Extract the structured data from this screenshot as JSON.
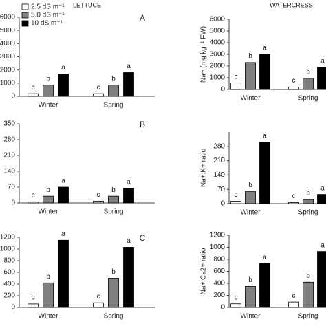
{
  "chart_data": [
    {
      "type": "bar",
      "title": "LETTUCE",
      "panel": "A",
      "categories": [
        "Winter",
        "Spring"
      ],
      "series": [
        {
          "name": "2.5 dS m⁻¹",
          "color": "#ffffff",
          "values": [
            200,
            200
          ],
          "letters": [
            "c",
            "c"
          ]
        },
        {
          "name": "5.0 dS m⁻¹",
          "color": "#808080",
          "values": [
            850,
            850
          ],
          "letters": [
            "b",
            "b"
          ]
        },
        {
          "name": "10  dS m⁻¹",
          "color": "#000000",
          "values": [
            1700,
            1800
          ],
          "letters": [
            "a",
            "a"
          ]
        }
      ],
      "ylim": [
        0,
        6000
      ],
      "yticks": [
        0,
        1000,
        2000,
        3000,
        4000,
        5000,
        6000
      ]
    },
    {
      "type": "bar",
      "title": "WATERCRESS",
      "ylabel": "Na+ (mg kg⁻¹ FW)",
      "categories": [
        "Winter",
        "Spring"
      ],
      "series": [
        {
          "color": "#ffffff",
          "values": [
            550,
            200
          ],
          "letters": [
            "c",
            "c"
          ]
        },
        {
          "color": "#808080",
          "values": [
            2300,
            950
          ],
          "letters": [
            "b",
            "b"
          ]
        },
        {
          "color": "#000000",
          "values": [
            3000,
            1900
          ],
          "letters": [
            "a",
            "a"
          ]
        }
      ],
      "ylim": [
        0,
        6000
      ],
      "yticks": [
        0,
        1000,
        2000,
        3000,
        4000,
        5000,
        6000
      ]
    },
    {
      "type": "bar",
      "panel": "B",
      "categories": [
        "Winter",
        "Spring"
      ],
      "series": [
        {
          "color": "#ffffff",
          "values": [
            5,
            8
          ],
          "letters": [
            "c",
            "c"
          ]
        },
        {
          "color": "#808080",
          "values": [
            30,
            30
          ],
          "letters": [
            "b",
            "b"
          ]
        },
        {
          "color": "#000000",
          "values": [
            70,
            65
          ],
          "letters": [
            "a",
            "a"
          ]
        }
      ],
      "ylim": [
        0,
        350
      ],
      "yticks": [
        0,
        70,
        140,
        210,
        280,
        350
      ]
    },
    {
      "type": "bar",
      "ylabel": "Na+:K+ ratio",
      "categories": [
        "Winter",
        "Spring"
      ],
      "series": [
        {
          "color": "#ffffff",
          "values": [
            12,
            5
          ],
          "letters": [
            "c",
            "c"
          ]
        },
        {
          "color": "#808080",
          "values": [
            60,
            20
          ],
          "letters": [
            "b",
            "b"
          ]
        },
        {
          "color": "#000000",
          "values": [
            300,
            45
          ],
          "letters": [
            "a",
            "a"
          ]
        }
      ],
      "ylim": [
        0,
        350
      ],
      "yticks": [
        0,
        70,
        140,
        210,
        280
      ]
    },
    {
      "type": "bar",
      "panel": "C",
      "categories": [
        "Winter",
        "Spring"
      ],
      "series": [
        {
          "color": "#ffffff",
          "values": [
            60,
            80
          ],
          "letters": [
            "c",
            "c"
          ]
        },
        {
          "color": "#808080",
          "values": [
            420,
            500
          ],
          "letters": [
            "b",
            "b"
          ]
        },
        {
          "color": "#000000",
          "values": [
            1150,
            1030
          ],
          "letters": [
            "a",
            "a"
          ]
        }
      ],
      "ylim": [
        0,
        1200
      ],
      "yticks": [
        0,
        200,
        400,
        600,
        800,
        1000,
        1200
      ]
    },
    {
      "type": "bar",
      "ylabel": "Na+:Ca2+ ratio",
      "categories": [
        "Winter",
        "Spring"
      ],
      "series": [
        {
          "color": "#ffffff",
          "values": [
            60,
            90
          ],
          "letters": [
            "c",
            "c"
          ]
        },
        {
          "color": "#808080",
          "values": [
            350,
            420
          ],
          "letters": [
            "b",
            "b"
          ]
        },
        {
          "color": "#000000",
          "values": [
            730,
            930
          ],
          "letters": [
            "a",
            "a"
          ]
        }
      ],
      "ylim": [
        0,
        1200
      ],
      "yticks": [
        0,
        200,
        400,
        600,
        800,
        1000,
        1200
      ]
    }
  ]
}
